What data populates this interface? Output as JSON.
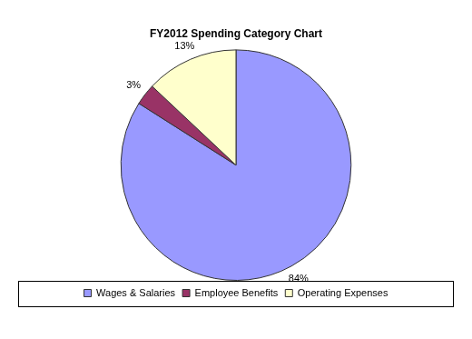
{
  "chart_data": {
    "type": "pie",
    "title": "FY2012 Spending Category Chart",
    "categories": [
      "Wages & Salaries",
      "Employee Benefits",
      "Operating Expenses"
    ],
    "values": [
      84,
      3,
      13
    ],
    "value_labels": [
      "84%",
      "3%",
      "13%"
    ],
    "colors": [
      "#9999ff",
      "#993366",
      "#ffffcc"
    ],
    "data_labels": true,
    "legend": "bottom"
  }
}
